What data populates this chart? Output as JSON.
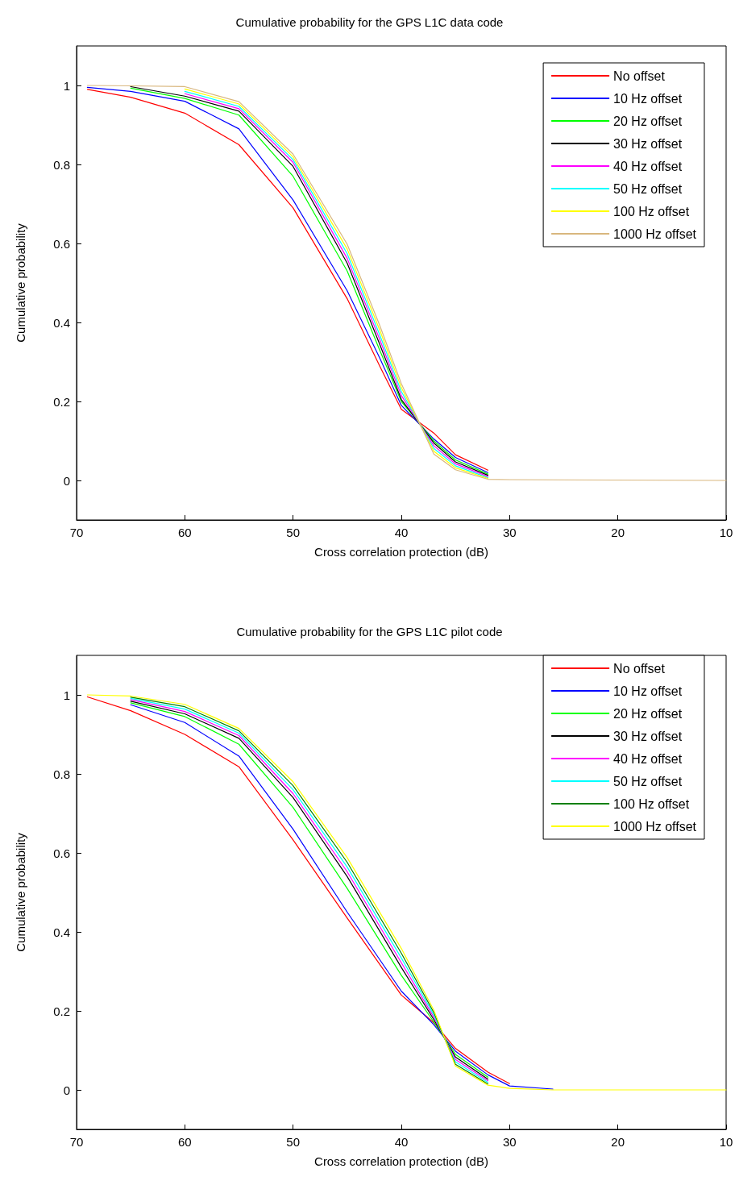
{
  "chart_data": [
    {
      "type": "line",
      "title": "Cumulative probability for the GPS L1C data code",
      "xlabel": "Cross correlation protection (dB)",
      "ylabel": "Cumulative probability",
      "x": [
        69,
        65,
        60,
        55,
        50,
        45,
        42,
        40,
        37,
        35,
        32,
        30,
        10
      ],
      "series": [
        {
          "name": "No offset",
          "color": "#ff0000",
          "values": [
            0.99,
            0.97,
            0.93,
            0.85,
            0.69,
            0.46,
            0.29,
            0.18,
            0.12,
            0.065,
            0.026,
            null,
            null
          ]
        },
        {
          "name": "10 Hz offset",
          "color": "#0000ff",
          "values": [
            0.995,
            0.985,
            0.96,
            0.89,
            0.71,
            0.48,
            0.31,
            0.19,
            0.105,
            0.058,
            0.02,
            null,
            null
          ]
        },
        {
          "name": "20 Hz offset",
          "color": "#00ff00",
          "values": [
            null,
            0.993,
            0.967,
            0.925,
            0.77,
            0.53,
            0.33,
            0.2,
            0.1,
            0.052,
            0.016,
            null,
            null
          ]
        },
        {
          "name": "30 Hz offset",
          "color": "#000000",
          "values": [
            null,
            0.997,
            0.973,
            0.935,
            0.795,
            0.55,
            0.345,
            0.205,
            0.095,
            0.047,
            0.013,
            null,
            null
          ]
        },
        {
          "name": "40 Hz offset",
          "color": "#ff00ff",
          "values": [
            null,
            null,
            0.979,
            0.941,
            0.805,
            0.562,
            0.357,
            0.215,
            0.088,
            0.042,
            0.01,
            null,
            null
          ]
        },
        {
          "name": "50 Hz offset",
          "color": "#00ffff",
          "values": [
            null,
            null,
            0.985,
            0.947,
            0.812,
            0.574,
            0.369,
            0.225,
            0.081,
            0.037,
            0.007,
            null,
            null
          ]
        },
        {
          "name": "100 Hz offset",
          "color": "#ffff00",
          "values": [
            null,
            null,
            0.991,
            0.953,
            0.819,
            0.586,
            0.381,
            0.235,
            0.074,
            0.032,
            0.005,
            null,
            null
          ]
        },
        {
          "name": "1000 Hz offset",
          "color": "#d9b77e",
          "values": [
            1.0,
            0.999,
            0.997,
            0.959,
            0.826,
            0.598,
            0.393,
            0.245,
            0.067,
            0.027,
            0.003,
            0.002,
            0.0
          ]
        }
      ],
      "xlim": [
        70,
        10
      ],
      "xticks": [
        70,
        60,
        50,
        40,
        30,
        20,
        10
      ],
      "ylim": [
        -0.1,
        1.1
      ],
      "yticks": [
        0,
        0.2,
        0.4,
        0.6,
        0.8,
        1
      ],
      "legend": "top right",
      "grid": false,
      "marker": "none",
      "line_style": "solid"
    },
    {
      "type": "line",
      "title": "Cumulative probability for the GPS L1C pilot code",
      "xlabel": "Cross correlation protection (dB)",
      "ylabel": "Cumulative probability",
      "x": [
        69,
        65,
        60,
        55,
        50,
        45,
        40,
        37,
        35,
        32,
        30,
        26,
        10
      ],
      "series": [
        {
          "name": "No offset",
          "color": "#ff0000",
          "values": [
            0.995,
            0.96,
            0.9,
            0.818,
            0.633,
            0.435,
            0.24,
            0.17,
            0.105,
            0.045,
            0.016,
            null,
            null
          ]
        },
        {
          "name": "10 Hz offset",
          "color": "#0000ff",
          "values": [
            null,
            0.975,
            0.93,
            0.845,
            0.66,
            0.45,
            0.25,
            0.165,
            0.098,
            0.038,
            0.01,
            0.002,
            null
          ]
        },
        {
          "name": "20 Hz offset",
          "color": "#00ff00",
          "values": [
            null,
            0.98,
            0.945,
            0.875,
            0.715,
            0.51,
            0.29,
            0.172,
            0.09,
            0.032,
            null,
            null,
            null
          ]
        },
        {
          "name": "30 Hz offset",
          "color": "#000000",
          "values": [
            null,
            0.984,
            0.952,
            0.89,
            0.74,
            0.54,
            0.31,
            0.178,
            0.083,
            0.027,
            null,
            null,
            null
          ]
        },
        {
          "name": "40 Hz offset",
          "color": "#ff00ff",
          "values": [
            null,
            0.988,
            0.958,
            0.897,
            0.75,
            0.552,
            0.322,
            0.184,
            0.077,
            0.023,
            null,
            null,
            null
          ]
        },
        {
          "name": "50 Hz offset",
          "color": "#00ffff",
          "values": [
            null,
            0.991,
            0.964,
            0.903,
            0.76,
            0.564,
            0.334,
            0.19,
            0.071,
            0.019,
            null,
            null,
            null
          ]
        },
        {
          "name": "100 Hz offset",
          "color": "#008000",
          "values": [
            null,
            0.994,
            0.97,
            0.909,
            0.77,
            0.576,
            0.346,
            0.196,
            0.065,
            0.015,
            null,
            null,
            null
          ]
        },
        {
          "name": "1000 Hz offset",
          "color": "#ffff00",
          "values": [
            1.0,
            0.997,
            0.976,
            0.915,
            0.78,
            0.588,
            0.358,
            0.202,
            0.06,
            0.012,
            0.004,
            0.0,
            0.0
          ]
        }
      ],
      "xlim": [
        70,
        10
      ],
      "xticks": [
        70,
        60,
        50,
        40,
        30,
        20,
        10
      ],
      "ylim": [
        -0.1,
        1.1
      ],
      "yticks": [
        0,
        0.2,
        0.4,
        0.6,
        0.8,
        1
      ],
      "legend": "top right",
      "grid": false,
      "marker": "none",
      "line_style": "solid"
    }
  ]
}
